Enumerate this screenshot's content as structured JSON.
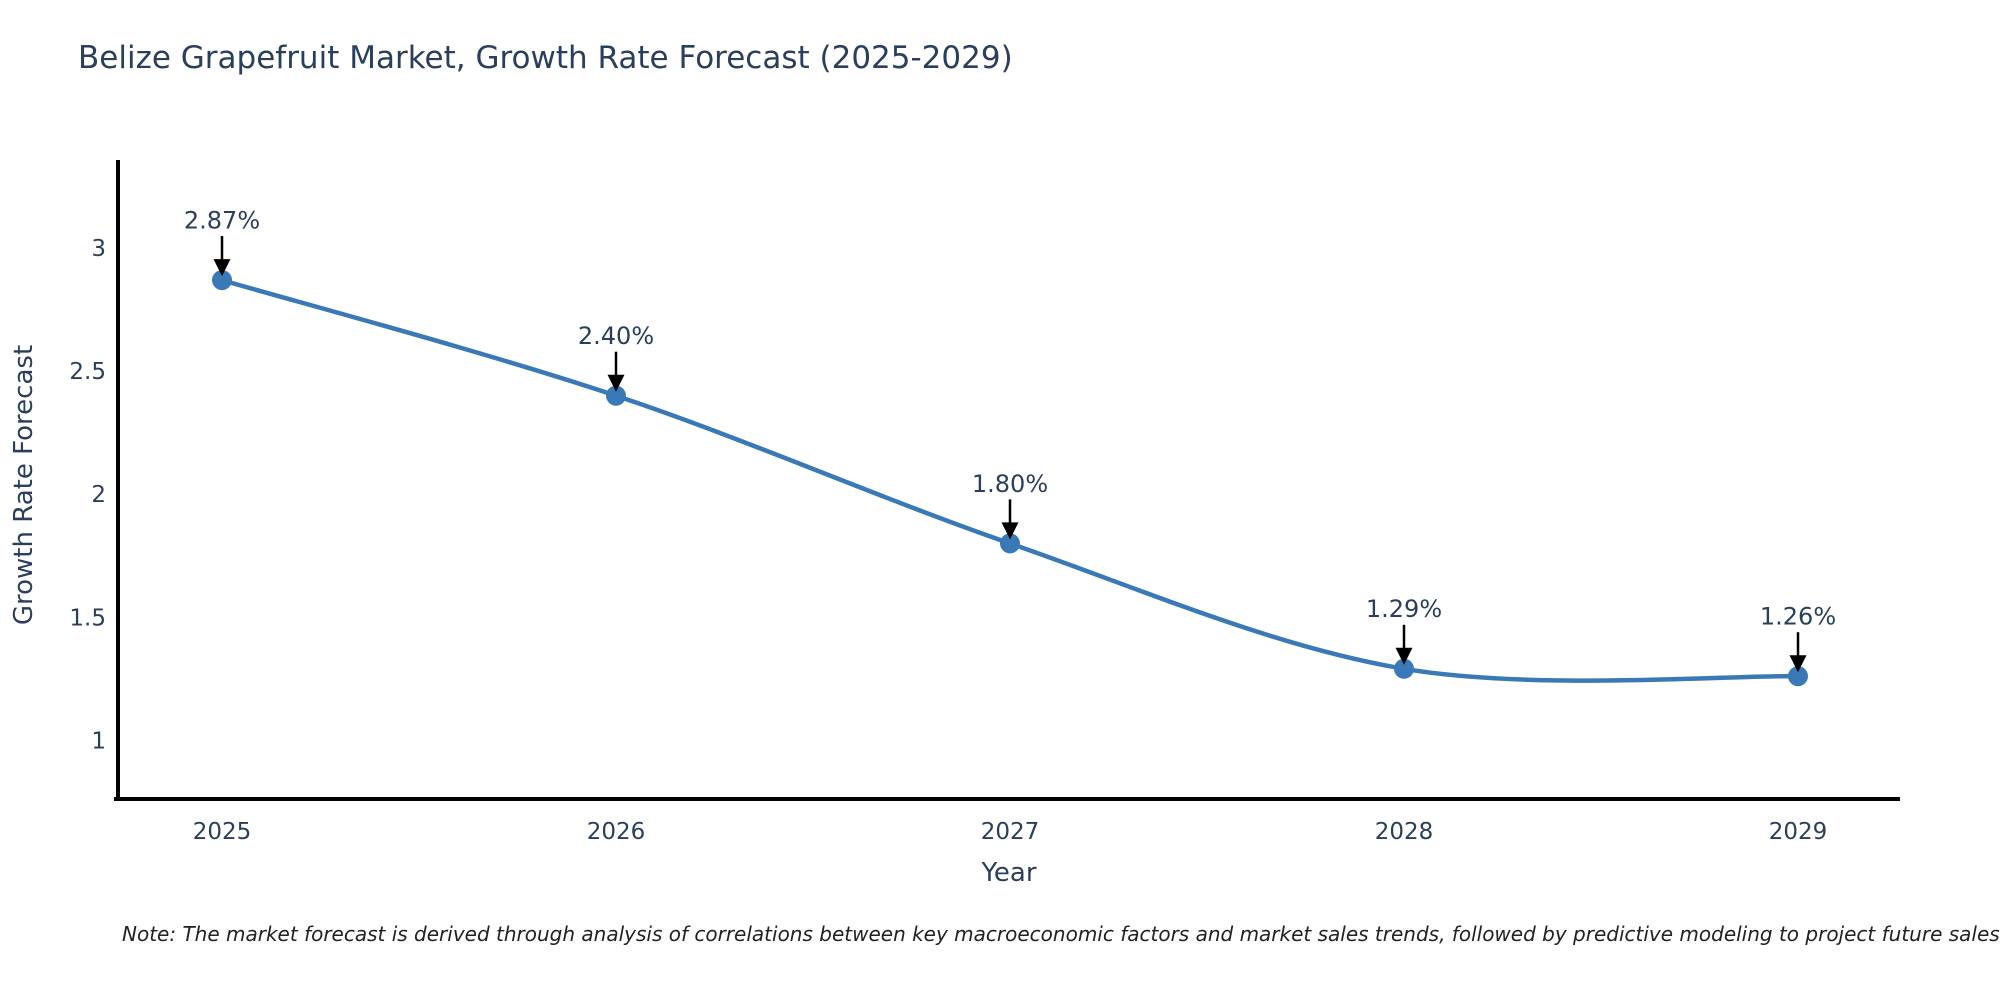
{
  "page": {
    "title": "Belize Grapefruit Market, Growth Rate Forecast (2025-2029)",
    "note": "Note: The market forecast is derived through analysis of correlations between key macroeconomic factors and market sales trends, followed by predictive modeling to project future sales"
  },
  "colors": {
    "line": "#3a79b8",
    "marker": "#3a79b8",
    "arrow": "#000000",
    "axis_line": "#000000",
    "label_text": "#2a3f5f",
    "note_text": "#222222",
    "background": "#ffffff"
  },
  "chart_data": {
    "type": "line",
    "line_shape": "spline",
    "title": "Belize Grapefruit Market, Growth Rate Forecast (2025-2029)",
    "xlabel": "Year",
    "ylabel": "Growth Rate Forecast",
    "x": [
      2025,
      2026,
      2027,
      2028,
      2029
    ],
    "values": [
      2.87,
      2.4,
      1.8,
      1.29,
      1.26
    ],
    "point_labels": [
      "2.87%",
      "2.40%",
      "1.80%",
      "1.29%",
      "1.26%"
    ],
    "xtick_labels": [
      "2025",
      "2026",
      "2027",
      "2028",
      "2029"
    ],
    "yticks": [
      1,
      1.5,
      2,
      2.5,
      3
    ],
    "ytick_labels": [
      "1",
      "1.5",
      "2",
      "2.5",
      "3"
    ],
    "xlim": [
      2024.736,
      2029.259
    ],
    "ylim": [
      0.761,
      3.358
    ],
    "grid": false,
    "legend": false,
    "markers": true,
    "annotations": "value-labels-with-down-arrows"
  }
}
